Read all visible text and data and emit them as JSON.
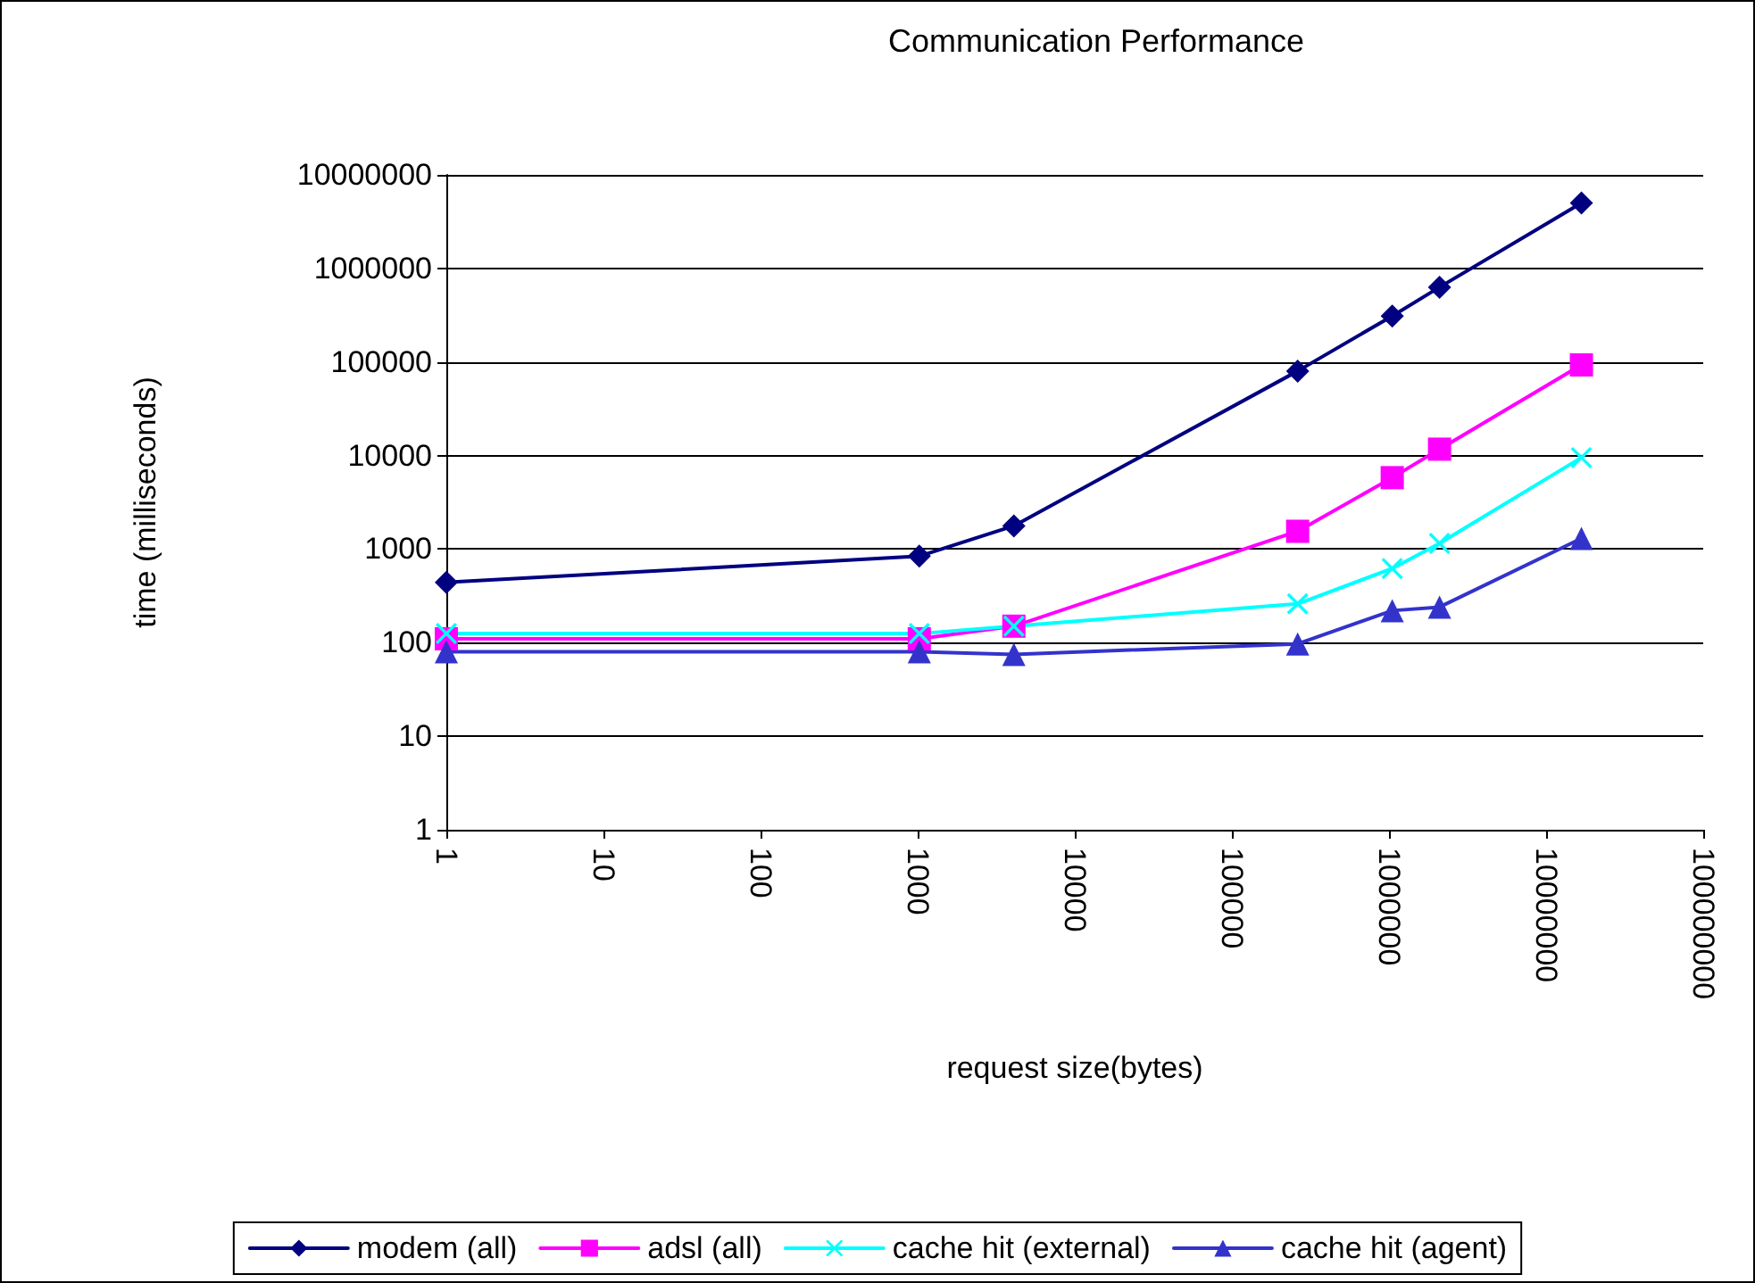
{
  "chart_data": {
    "type": "line",
    "title": "Communication Performance",
    "xlabel": "request size(bytes)",
    "ylabel": "time (milliseconds)",
    "log": "xy",
    "grid": "y",
    "legend": "bottom",
    "line_style": "solid",
    "x": [
      1,
      1024,
      4096,
      262144,
      1048576,
      2097152,
      16777216
    ],
    "xlim": [
      1,
      100000000
    ],
    "xticks": [
      1,
      10,
      100,
      1000,
      10000,
      100000,
      1000000,
      10000000,
      100000000
    ],
    "ylim": [
      1,
      10000000
    ],
    "yticks": [
      1,
      10,
      100,
      1000,
      10000,
      100000,
      1000000,
      10000000
    ],
    "series": [
      {
        "name": "modem (all)",
        "color": "#000080",
        "marker": "diamond",
        "values": [
          440,
          840,
          1770,
          80000,
          310000,
          630000,
          5000000
        ]
      },
      {
        "name": "adsl (all)",
        "color": "#ff00ff",
        "marker": "square",
        "values": [
          110,
          110,
          150,
          1550,
          5800,
          11700,
          93000
        ]
      },
      {
        "name": "cache hit (external)",
        "color": "#00ffff",
        "marker": "cross",
        "values": [
          125,
          125,
          150,
          260,
          620,
          1150,
          9500
        ]
      },
      {
        "name": "cache hit (agent)",
        "color": "#3333cc",
        "marker": "triangle",
        "values": [
          80,
          80,
          75,
          97,
          220,
          240,
          1300
        ]
      }
    ]
  }
}
